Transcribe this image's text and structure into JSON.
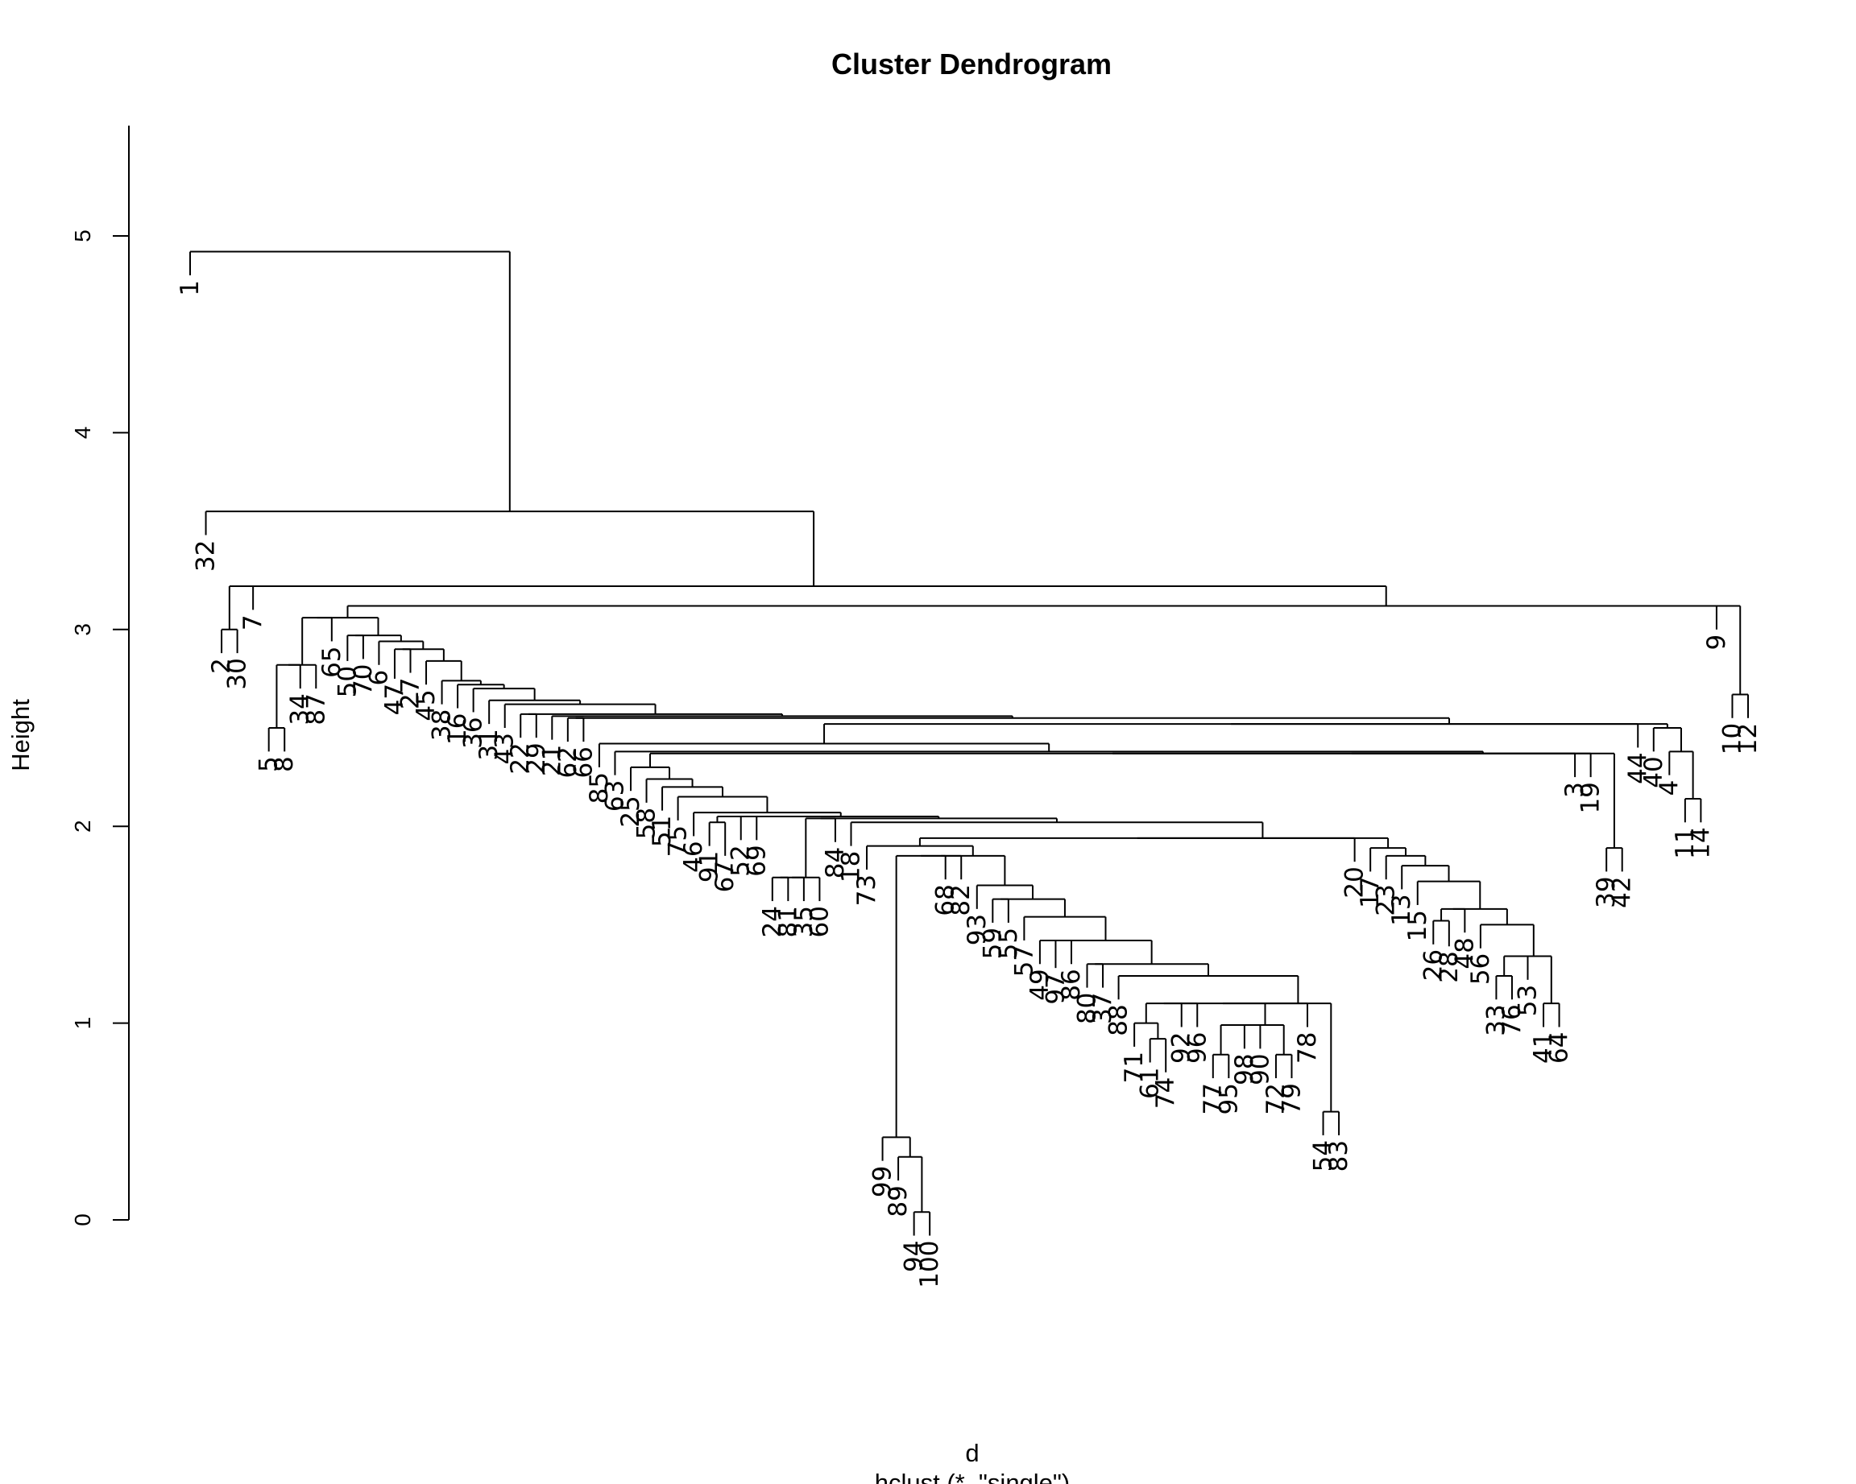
{
  "chart_data": {
    "type": "dendrogram",
    "title": "Cluster Dendrogram",
    "xlabel": "d",
    "sub": "hclust (*, \"single\")",
    "ylabel": "Height",
    "ylim": [
      0,
      5.5
    ],
    "yticks": [
      0,
      1,
      2,
      3,
      4,
      5
    ],
    "n_leaves": 100,
    "leaf_order": [
      1,
      32,
      2,
      30,
      7,
      5,
      8,
      34,
      87,
      65,
      50,
      70,
      6,
      47,
      27,
      45,
      38,
      16,
      36,
      31,
      43,
      22,
      29,
      21,
      62,
      66,
      85,
      63,
      25,
      58,
      51,
      75,
      46,
      91,
      67,
      52,
      69,
      24,
      81,
      35,
      60,
      84,
      18,
      73,
      99,
      89,
      94,
      100,
      68,
      82,
      93,
      59,
      55,
      57,
      49,
      97,
      86,
      80,
      37,
      88,
      71,
      61,
      74,
      92,
      96,
      77,
      95,
      98,
      90,
      72,
      79,
      78,
      54,
      83,
      20,
      17,
      23,
      13,
      15,
      26,
      28,
      48,
      56,
      33,
      76,
      53,
      41,
      64,
      3,
      19,
      39,
      42,
      44,
      40,
      4,
      11,
      14,
      9,
      10,
      12
    ],
    "merges": [
      {
        "height": 5.32,
        "left": {
          "x": 1,
          "h": 4.8
        },
        "right": {
          "x": 3.82,
          "h": 4.0
        }
      },
      {
        "height": 4.0,
        "left": {
          "x": 1.0,
          "h": 3.48
        },
        "right": {
          "x": 5.12,
          "h": 3.65
        }
      },
      {
        "height": 3.65,
        "left": {
          "x": 2.0,
          "h": 3.38
        },
        "right": {
          "x": 8.65,
          "h": 3.6
        }
      },
      {
        "height": 3.38,
        "left": {
          "x": 1.5,
          "h": 2.88
        },
        "right": {
          "x": 2.5,
          "h": 2.88
        }
      },
      {
        "height": 3.6,
        "left": {
          "x": 4.0,
          "h": 3.1
        },
        "right": {
          "x": 13.63,
          "h": 3.58
        }
      },
      {
        "height": 3.58,
        "left": {
          "x": 5.5,
          "h": 2.86
        },
        "right": {
          "x": 21.78,
          "h": 3.55
        }
      },
      {
        "height": 2.86,
        "left": {
          "x": 5.0,
          "h": 2.38
        },
        "right": {
          "x": 6.0,
          "h": 2.38
        }
      },
      {
        "height": 3.55,
        "left": {
          "x": 7.5,
          "h": 3.18
        },
        "right": {
          "x": 35.1,
          "h": 3.5
        }
      },
      {
        "height": 3.18,
        "left": {
          "x": 7.0,
          "h": 2.7
        },
        "right": {
          "x": 8.0,
          "h": 2.7
        }
      },
      {
        "height": 3.5,
        "left": {
          "x": 22.0,
          "h": 3.44
        },
        "right": {
          "x": 97.5,
          "h": 3.5
        }
      },
      {
        "height": 3.44,
        "left": {
          "x": 9.0,
          "h": 2.94
        },
        "right": {
          "x": 34.9,
          "h": 3.38
        }
      },
      {
        "height": 3.38,
        "left": {
          "x": 10.0,
          "h": 2.84
        },
        "right": {
          "x": 39.0,
          "h": 3.37
        }
      },
      {
        "height": 3.37,
        "left": {
          "x": 11.0,
          "h": 2.85
        },
        "right": {
          "x": 43.0,
          "h": 3.32
        }
      },
      {
        "height": 3.32,
        "left": {
          "x": 12.0,
          "h": 2.82
        },
        "right": {
          "x": 47.0,
          "h": 3.3
        }
      },
      {
        "height": 3.3,
        "left": {
          "x": 13.0,
          "h": 2.75
        },
        "right": {
          "x": 51.0,
          "h": 3.28
        }
      },
      {
        "height": 3.28,
        "left": {
          "x": 14.0,
          "h": 2.78
        },
        "right": {
          "x": 55.0,
          "h": 3.26
        }
      },
      {
        "height": 3.26,
        "left": {
          "x": 15.0,
          "h": 2.72
        },
        "right": {
          "x": 59.0,
          "h": 3.15
        }
      },
      {
        "height": 3.15,
        "left": {
          "x": 16.0,
          "h": 2.62
        },
        "right": {
          "x": 62.0,
          "h": 3.13
        }
      },
      {
        "height": 3.13,
        "left": {
          "x": 17.0,
          "h": 2.6
        },
        "right": {
          "x": 65.0,
          "h": 3.06
        }
      },
      {
        "height": 3.06,
        "left": {
          "x": 18.0,
          "h": 2.58
        },
        "right": {
          "x": 68.0,
          "h": 3.05
        }
      },
      {
        "height": 3.05,
        "left": {
          "x": 19.0,
          "h": 2.52
        },
        "right": {
          "x": 71.0,
          "h": 3.04
        }
      },
      {
        "height": 3.04,
        "left": {
          "x": 20.0,
          "h": 2.5
        },
        "right": {
          "x": 74.0,
          "h": 3.03
        }
      },
      {
        "height": 3.03,
        "left": {
          "x": 21.0,
          "h": 2.45
        },
        "right": {
          "x": 77.0,
          "h": 2.95
        }
      },
      {
        "height": 2.95,
        "left": {
          "x": 22.0,
          "h": 2.45
        },
        "right": {
          "x": 80.0,
          "h": 2.94
        }
      },
      {
        "height": 2.94,
        "left": {
          "x": 23.0,
          "h": 2.44
        },
        "right": {
          "x": 83.0,
          "h": 2.93
        }
      },
      {
        "height": 2.93,
        "left": {
          "x": 25.0,
          "h": 2.43
        },
        "right": {
          "x": 92.0,
          "h": 2.92
        }
      },
      {
        "height": 2.92,
        "left": {
          "x": 26.0,
          "h": 2.3
        },
        "right": {
          "x": 93.0,
          "h": 2.9
        }
      },
      {
        "height": 2.9,
        "left": {
          "x": 27.0,
          "h": 2.26
        },
        "right": {
          "x": 94.0,
          "h": 2.85
        }
      },
      {
        "height": 2.85,
        "left": {
          "x": 29.0,
          "h": 2.18
        },
        "right": {
          "x": 95.0,
          "h": 2.78
        }
      },
      {
        "height": 2.78,
        "left": {
          "x": 31.0,
          "h": 2.12
        },
        "right": {
          "x": 96.0,
          "h": 2.72
        }
      },
      {
        "height": 2.72,
        "left": {
          "x": 33.0,
          "h": 2.08
        },
        "right": {
          "x": 97.0,
          "h": 2.65
        }
      },
      {
        "height": 2.65,
        "left": {
          "x": 34.5,
          "h": 2.03
        },
        "right": {
          "x": 97.5,
          "h": 2.6
        }
      },
      {
        "height": 2.6,
        "left": {
          "x": 36.0,
          "h": 1.95
        },
        "right": {
          "x": 98.0,
          "h": 2.55
        }
      },
      {
        "height": 2.55,
        "left": {
          "x": 37.5,
          "h": 1.9
        },
        "right": {
          "x": 99.0,
          "h": 2.5
        }
      }
    ],
    "leaf_heights": {
      "1": 4.8,
      "32": 3.48,
      "2": 2.88,
      "30": 2.88,
      "7": 3.1,
      "5": 2.38,
      "8": 2.38,
      "34": 2.7,
      "87": 2.7,
      "65": 2.94,
      "50": 2.84,
      "70": 2.85,
      "6": 2.82,
      "47": 2.75,
      "27": 2.78,
      "45": 2.72,
      "38": 2.62,
      "16": 2.6,
      "36": 2.58,
      "31": 2.52,
      "43": 2.5,
      "22": 2.45,
      "29": 2.45,
      "21": 2.44,
      "62": 2.43,
      "66": 2.43,
      "85": 2.3,
      "63": 2.26,
      "25": 2.18,
      "58": 2.12,
      "51": 2.08,
      "75": 2.03,
      "46": 1.95,
      "91": 1.9,
      "67": 1.85,
      "52": 1.93,
      "69": 1.93,
      "24": 1.62,
      "81": 1.62,
      "35": 1.62,
      "60": 1.62,
      "84": 1.92,
      "18": 1.9,
      "73": 1.78,
      "99": 0.3,
      "89": 0.2,
      "94": -0.08,
      "100": -0.08,
      "68": 1.73,
      "82": 1.73,
      "93": 1.58,
      "59": 1.51,
      "55": 1.51,
      "57": 1.42,
      "49": 1.3,
      "97": 1.28,
      "86": 1.3,
      "80": 1.18,
      "37": 1.18,
      "88": 1.12,
      "71": 0.88,
      "61": 0.8,
      "74": 0.75,
      "92": 0.98,
      "96": 0.98,
      "77": 0.72,
      "95": 0.72,
      "98": 0.87,
      "90": 0.87,
      "72": 0.72,
      "79": 0.72,
      "78": 0.98,
      "54": 0.43,
      "83": 0.43,
      "20": 1.82,
      "17": 1.77,
      "23": 1.73,
      "13": 1.68,
      "15": 1.6,
      "26": 1.4,
      "28": 1.39,
      "48": 1.46,
      "56": 1.38,
      "33": 1.12,
      "76": 1.12,
      "53": 1.22,
      "41": 0.98,
      "64": 0.98,
      "3": 2.25,
      "19": 2.25,
      "39": 1.77,
      "42": 1.77,
      "44": 2.4,
      "40": 2.38,
      "4": 2.26,
      "11": 2.02,
      "14": 2.02,
      "9": 3.0,
      "10": 2.55,
      "12": 2.55
    }
  }
}
